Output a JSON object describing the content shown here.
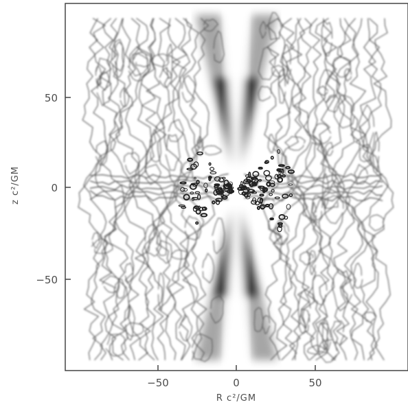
{
  "chart_data": {
    "type": "heatmap",
    "title": "",
    "xlabel": "R c²/GM",
    "ylabel": "z c²/GM",
    "xlim": [
      -95,
      95
    ],
    "ylim": [
      -95,
      95
    ],
    "xticks": [
      {
        "value": -50,
        "label": "−50"
      },
      {
        "value": 0,
        "label": "0"
      },
      {
        "value": 50,
        "label": "50"
      }
    ],
    "yticks": [
      {
        "value": 50,
        "label": "50"
      },
      {
        "value": 0,
        "label": "0"
      },
      {
        "value": -50,
        "label": "−50"
      }
    ],
    "grid": false,
    "colors": {
      "shading": "#000000",
      "contour": "#555555",
      "axis": "#444444",
      "background": "#ffffff"
    }
  }
}
